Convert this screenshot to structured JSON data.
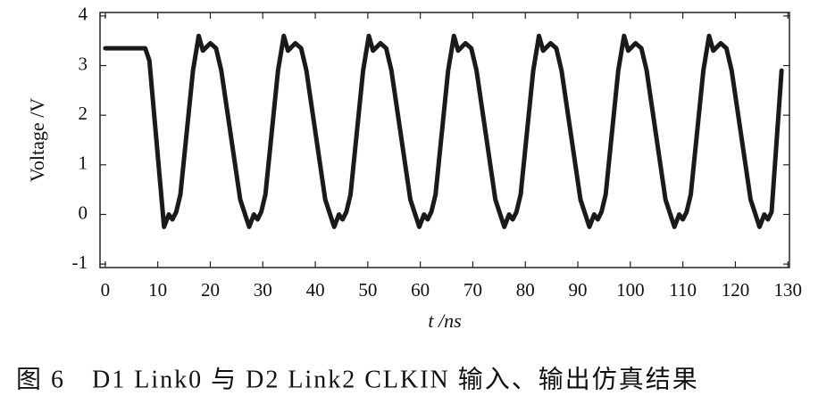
{
  "chart_data": {
    "type": "line",
    "ylabel": "Voltage /V",
    "xlabel": "t /ns",
    "caption": "图 6　D1 Link0 与 D2 Link2 CLKIN 输入、输出仿真结果",
    "xlim": [
      -1,
      130.3
    ],
    "ylim": [
      -1.07,
      4.07
    ],
    "xticks": [
      0,
      10,
      20,
      30,
      40,
      50,
      60,
      70,
      80,
      90,
      100,
      110,
      120,
      130
    ],
    "yticks": [
      -1,
      0,
      1,
      2,
      3,
      4
    ],
    "series": [
      {
        "color": "#1a1a1a",
        "x": [
          0,
          7.6,
          8.4,
          11.2,
          12.1,
          12.8,
          13.5,
          14.3,
          16.7,
          17.8,
          18.6,
          20.0,
          21.1,
          22.1,
          25.7,
          27.4,
          28.3,
          29.0,
          29.7,
          30.5,
          32.9,
          34.0,
          34.8,
          36.2,
          37.3,
          38.3,
          41.9,
          43.6,
          44.5,
          45.2,
          45.9,
          46.7,
          49.1,
          50.2,
          51.0,
          52.4,
          53.5,
          54.5,
          58.1,
          59.8,
          60.7,
          61.4,
          62.1,
          62.9,
          65.3,
          66.4,
          67.2,
          68.6,
          69.7,
          70.7,
          74.3,
          76.0,
          76.9,
          77.6,
          78.3,
          79.1,
          81.5,
          82.6,
          83.4,
          84.8,
          85.9,
          86.9,
          90.5,
          92.2,
          93.1,
          93.8,
          94.5,
          95.3,
          97.7,
          98.8,
          99.6,
          101.0,
          102.1,
          103.1,
          106.7,
          108.4,
          109.3,
          110.0,
          110.7,
          111.5,
          113.9,
          115.0,
          115.8,
          117.2,
          118.3,
          119.3,
          122.9,
          124.6,
          125.5,
          126.2,
          126.9,
          128.8
        ],
        "values": [
          3.35,
          3.35,
          3.1,
          -0.25,
          0.0,
          -0.1,
          0.05,
          0.4,
          2.9,
          3.6,
          3.3,
          3.45,
          3.35,
          2.9,
          0.3,
          -0.25,
          0.0,
          -0.1,
          0.05,
          0.4,
          2.9,
          3.6,
          3.3,
          3.45,
          3.35,
          2.9,
          0.3,
          -0.25,
          0.0,
          -0.1,
          0.05,
          0.4,
          2.9,
          3.6,
          3.3,
          3.45,
          3.35,
          2.9,
          0.3,
          -0.25,
          0.0,
          -0.1,
          0.05,
          0.4,
          2.9,
          3.6,
          3.3,
          3.45,
          3.35,
          2.9,
          0.3,
          -0.25,
          0.0,
          -0.1,
          0.05,
          0.4,
          2.9,
          3.6,
          3.3,
          3.45,
          3.35,
          2.9,
          0.3,
          -0.25,
          0.0,
          -0.1,
          0.05,
          0.4,
          2.9,
          3.6,
          3.3,
          3.45,
          3.35,
          2.9,
          0.3,
          -0.25,
          0.0,
          -0.1,
          0.05,
          0.4,
          2.9,
          3.6,
          3.3,
          3.45,
          3.35,
          2.9,
          0.3,
          -0.25,
          0.0,
          -0.1,
          0.05,
          2.9
        ]
      }
    ]
  }
}
